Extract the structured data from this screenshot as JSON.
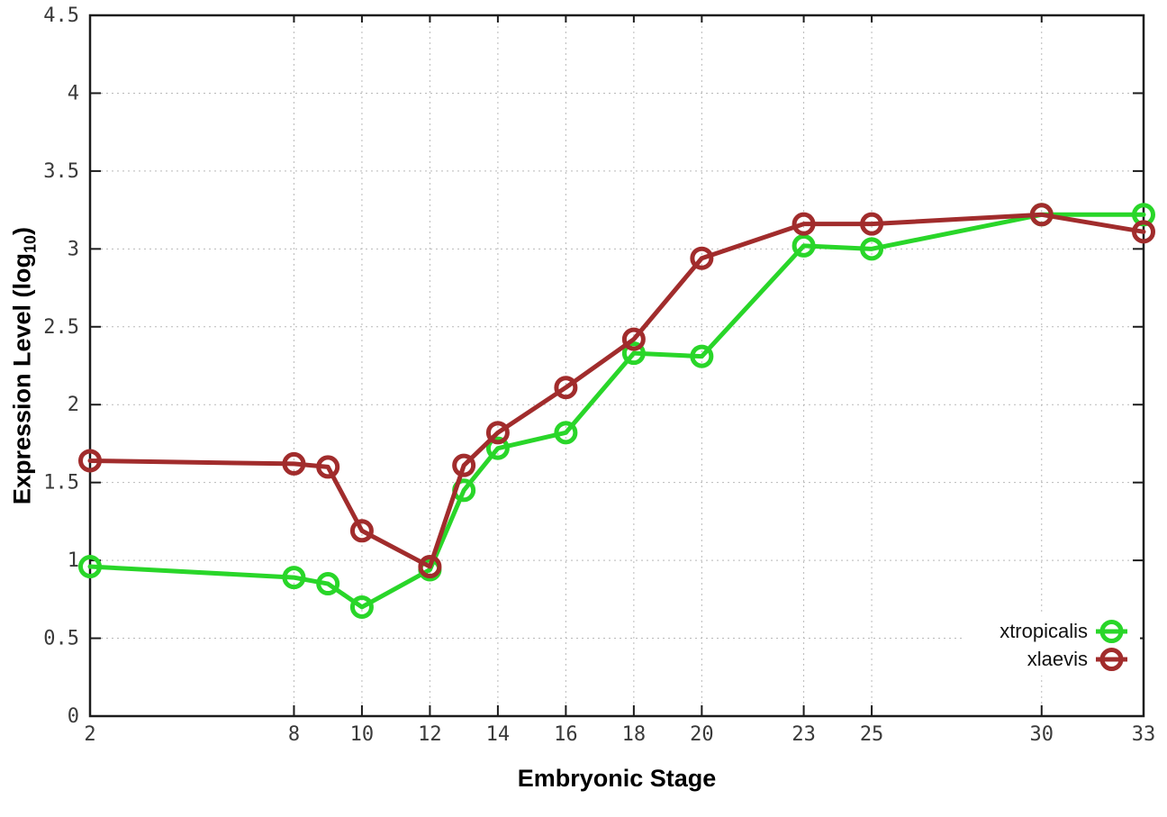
{
  "chart_data": {
    "type": "line",
    "title": "",
    "xlabel": "Embryonic Stage",
    "ylabel": "Expression Level (log10)",
    "ylabel_parts": {
      "pre": "Expression Level (log",
      "sub": "10",
      "post": ")"
    },
    "x": [
      2,
      8,
      9,
      10,
      12,
      13,
      14,
      16,
      18,
      20,
      23,
      25,
      30,
      33
    ],
    "series": [
      {
        "name": "xtropicalis",
        "color": "#29d629",
        "values": [
          0.96,
          0.89,
          0.85,
          0.7,
          0.94,
          1.45,
          1.72,
          1.82,
          2.33,
          2.31,
          3.02,
          3.0,
          3.22,
          3.22
        ]
      },
      {
        "name": "xlaevis",
        "color": "#a12c2c",
        "values": [
          1.64,
          1.62,
          1.6,
          1.19,
          0.96,
          1.61,
          1.82,
          2.11,
          2.42,
          2.94,
          3.16,
          3.16,
          3.22,
          3.11
        ]
      }
    ],
    "x_ticks": [
      2,
      8,
      10,
      12,
      14,
      16,
      18,
      20,
      23,
      25,
      30,
      33
    ],
    "y_ticks": [
      0,
      0.5,
      1,
      1.5,
      2,
      2.5,
      3,
      3.5,
      4,
      4.5
    ],
    "xlim": [
      2,
      33
    ],
    "ylim": [
      0,
      4.5
    ],
    "grid": true,
    "legend_position": "bottom-right",
    "marker": "open-circle",
    "axis_color": "#1c1c1c",
    "grid_color": "#b9b9b9",
    "tick_label_color": "#3a3a3a",
    "background_color": "#ffffff"
  }
}
